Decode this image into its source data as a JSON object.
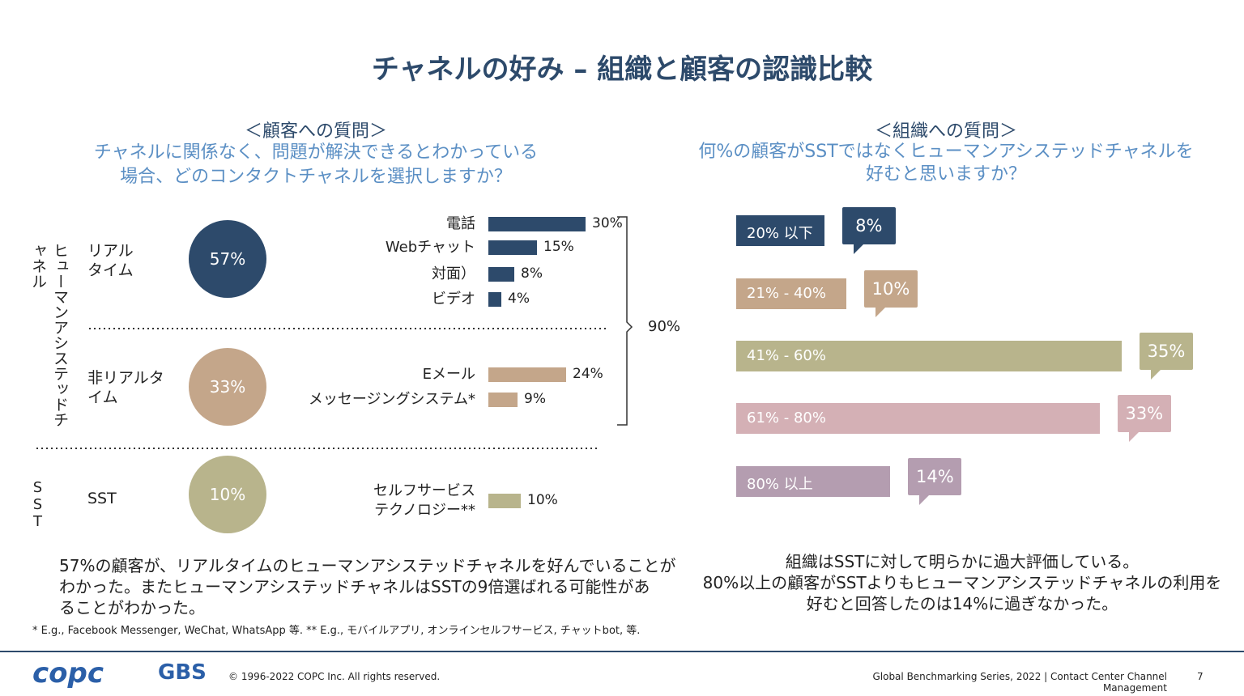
{
  "title": "チャネルの好み – 組織と顧客の認識比較",
  "chart_data": [
    {
      "type": "grouped-bar",
      "title": "＜顧客への質問＞",
      "subtitle": "チャネルに関係なく、問題が解決できるとわかっている\n場合、どのコンタクトチャネルを選択しますか？",
      "side_labels": [
        "ヒューマンアシステッドチャネル",
        "SST"
      ],
      "groups": [
        {
          "name": "リアル\nタイム",
          "share": 57,
          "share_label": "57%",
          "color": "#2d4a6b",
          "categories": [
            "電話",
            "Webチャット",
            "対面）",
            "ビデオ"
          ],
          "values": [
            30,
            15,
            8,
            4
          ],
          "value_labels": [
            "30%",
            "15%",
            "8%",
            "4%"
          ]
        },
        {
          "name": "非リアルタ\nイム",
          "share": 33,
          "share_label": "33%",
          "color": "#c4a68a",
          "categories": [
            "Eメール",
            "メッセージングシステム*"
          ],
          "values": [
            24,
            9
          ],
          "value_labels": [
            "24%",
            "9%"
          ]
        },
        {
          "name": "SST",
          "share": 10,
          "share_label": "10%",
          "color": "#b8b48c",
          "categories": [
            "セルフサービス\nテクノロジー**"
          ],
          "values": [
            10
          ],
          "value_labels": [
            "10%"
          ]
        }
      ],
      "total": 90,
      "total_label": "90%"
    },
    {
      "type": "hbar",
      "title": "＜組織への質問＞",
      "subtitle": "何%の顧客がSSTではなくヒューマンアシステッドチャネルを\n好むと思いますか？",
      "categories": [
        "20% 以下",
        "21% - 40%",
        "41% - 60%",
        "61% - 80%",
        "80% 以上"
      ],
      "values": [
        8,
        10,
        35,
        33,
        14
      ],
      "value_labels": [
        "8%",
        "10%",
        "35%",
        "33%",
        "14%"
      ],
      "colors": [
        "#2d4a6b",
        "#c4a68a",
        "#b8b48c",
        "#d4b0b5",
        "#b49db0"
      ]
    }
  ],
  "summary_left": "57%の顧客が、リアルタイムのヒューマンアシステッドチャネルを好んでいることが\nわかった。またヒューマンアシステッドチャネルはSSTの9倍選ばれる可能性があ\nることがわかった。",
  "footnote": "* E.g., Facebook Messenger, WeChat, WhatsApp 等.  ** E.g., モバイルアプリ, オンラインセルフサービス, チャットbot, 等.",
  "summary_right": "組織はSSTに対して明らかに過大評価している。\n80%以上の顧客がSSTよりもヒューマンアシステッドチャネルの利用を\n好むと回答したのは14%に過ぎなかった。",
  "footer": {
    "logo1": "copc",
    "logo2": "GBS",
    "copyright": "© 1996-2022 COPC Inc. All rights reserved.",
    "series": "Global Benchmarking Series, 2022 | Contact Center Channel Management",
    "page": "7"
  }
}
